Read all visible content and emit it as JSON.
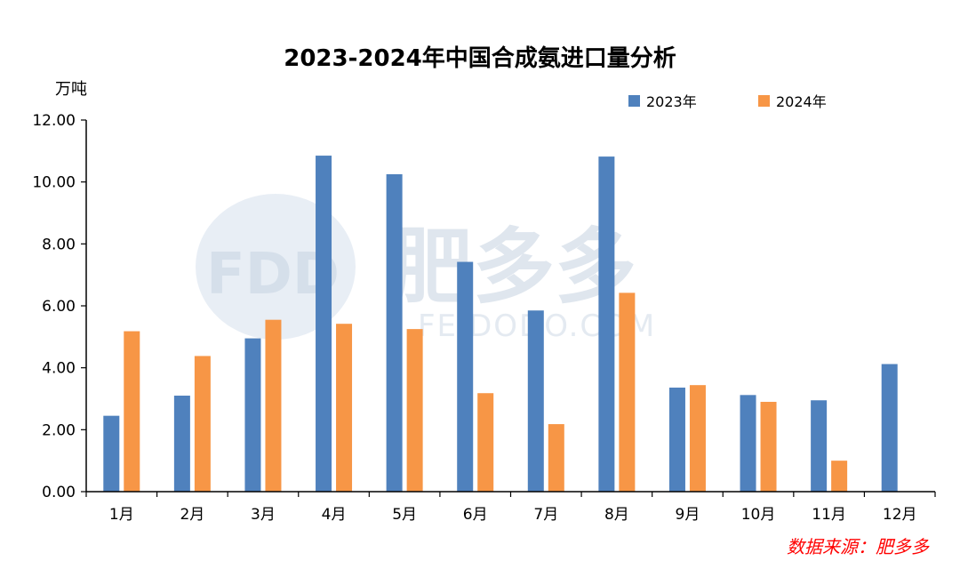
{
  "chart_data": {
    "type": "bar",
    "title": "2023-2024年中国合成氨进口量分析",
    "ylabel": "万吨",
    "xlabel": "",
    "ylim": [
      0,
      12
    ],
    "yticks": [
      "0.00",
      "2.00",
      "4.00",
      "6.00",
      "8.00",
      "10.00",
      "12.00"
    ],
    "categories": [
      "1月",
      "2月",
      "3月",
      "4月",
      "5月",
      "6月",
      "7月",
      "8月",
      "9月",
      "10月",
      "11月",
      "12月"
    ],
    "series": [
      {
        "name": "2023年",
        "color": "#4f81bd",
        "values": [
          2.45,
          3.1,
          4.95,
          10.85,
          10.25,
          7.42,
          5.85,
          10.82,
          3.36,
          3.12,
          2.95,
          4.12
        ]
      },
      {
        "name": "2024年",
        "color": "#f79646",
        "values": [
          5.18,
          4.38,
          5.55,
          5.42,
          5.25,
          3.18,
          2.18,
          6.42,
          3.44,
          2.9,
          1.0,
          null
        ]
      }
    ],
    "legend_position": "top-right",
    "grid": false
  },
  "source_note": "数据来源：肥多多",
  "watermark": {
    "brand": "肥多多",
    "logo_text": "FDD",
    "domain": "FEIDODO.COM"
  }
}
